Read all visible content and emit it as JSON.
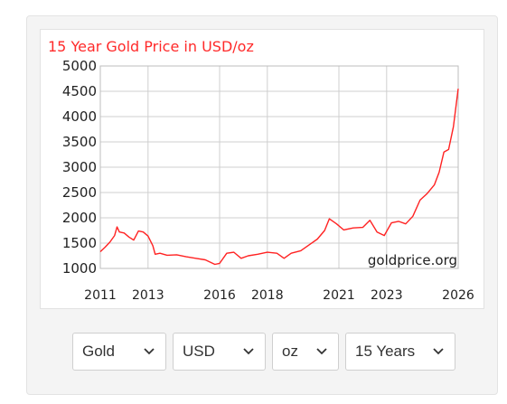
{
  "chart_data": {
    "type": "line",
    "title": "15 Year Gold Price in USD/oz",
    "watermark": "goldprice.org",
    "ylim": [
      1000,
      5000
    ],
    "xlim": [
      2011.0,
      2026.0
    ],
    "y_ticks": [
      5000,
      4500,
      4000,
      3500,
      3000,
      2500,
      2000,
      1500,
      1000
    ],
    "x_ticks": [
      2011,
      2013,
      2016,
      2018,
      2021,
      2023,
      2026
    ],
    "grid": true,
    "series": [
      {
        "color": "#ff2222",
        "x": [
          2011.0,
          2011.2,
          2011.4,
          2011.6,
          2011.7,
          2011.8,
          2012.0,
          2012.2,
          2012.4,
          2012.6,
          2012.8,
          2013.0,
          2013.2,
          2013.3,
          2013.5,
          2013.8,
          2014.2,
          2014.6,
          2015.0,
          2015.4,
          2015.8,
          2016.0,
          2016.3,
          2016.6,
          2016.9,
          2017.2,
          2017.6,
          2018.0,
          2018.4,
          2018.7,
          2019.0,
          2019.4,
          2019.8,
          2020.1,
          2020.4,
          2020.6,
          2020.9,
          2021.2,
          2021.6,
          2022.0,
          2022.3,
          2022.6,
          2022.9,
          2023.2,
          2023.5,
          2023.8,
          2024.1,
          2024.4,
          2024.7,
          2025.0,
          2025.2,
          2025.4,
          2025.6,
          2025.8,
          2026.0
        ],
        "y": [
          1330,
          1420,
          1520,
          1650,
          1820,
          1720,
          1700,
          1620,
          1560,
          1740,
          1720,
          1640,
          1450,
          1280,
          1300,
          1260,
          1270,
          1230,
          1200,
          1170,
          1080,
          1100,
          1300,
          1320,
          1200,
          1250,
          1280,
          1320,
          1300,
          1200,
          1300,
          1350,
          1480,
          1580,
          1750,
          1980,
          1880,
          1760,
          1800,
          1810,
          1950,
          1720,
          1650,
          1900,
          1930,
          1880,
          2030,
          2350,
          2480,
          2650,
          2900,
          3300,
          3350,
          3800,
          4550
        ]
      }
    ]
  },
  "controls": {
    "metal": "Gold",
    "currency": "USD",
    "unit": "oz",
    "range": "15 Years"
  },
  "icons": {
    "dropdown": "chevron-down-icon"
  }
}
